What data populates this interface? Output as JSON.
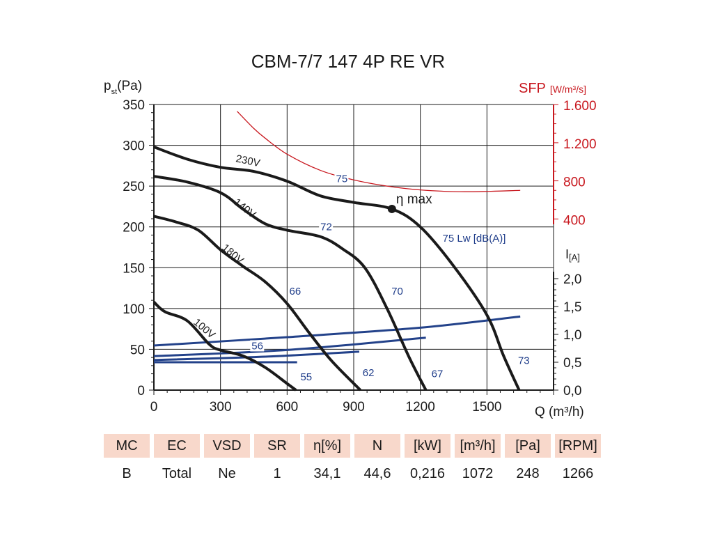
{
  "chart_data": {
    "type": "line",
    "title": "CBM-7/7 147 4P RE VR",
    "xlabel": "Q (m³/h)",
    "ylabel": "p_st(Pa)",
    "ylabel_main": "p",
    "ylabel_sub": "st",
    "ylabel_unit": "(Pa)",
    "xlim": [
      0,
      1800
    ],
    "ylim": [
      0,
      350
    ],
    "x_ticks": [
      "0",
      "300",
      "600",
      "900",
      "1200",
      "1500"
    ],
    "y_ticks": [
      "0",
      "50",
      "100",
      "150",
      "200",
      "250",
      "300",
      "350"
    ],
    "sfp_axis": {
      "label": "SFP",
      "unit": "[W/m³/s]",
      "ticks": [
        "400",
        "800",
        "1.200",
        "1.600"
      ],
      "range": [
        0,
        1600
      ],
      "color": "#c8171e"
    },
    "current_axis": {
      "label": "I",
      "unit": "[A]",
      "ticks": [
        "0,0",
        "0,5",
        "1,0",
        "1,5",
        "2,0"
      ],
      "range": [
        0,
        2.0
      ]
    },
    "grid": true,
    "pressure_series": [
      {
        "name": "230V",
        "points": [
          [
            0,
            298
          ],
          [
            150,
            283
          ],
          [
            300,
            273
          ],
          [
            450,
            268
          ],
          [
            600,
            256
          ],
          [
            750,
            238
          ],
          [
            900,
            230
          ],
          [
            1072,
            222
          ],
          [
            1200,
            200
          ],
          [
            1350,
            152
          ],
          [
            1500,
            92
          ],
          [
            1575,
            42
          ],
          [
            1645,
            0
          ]
        ]
      },
      {
        "name": "140V",
        "points": [
          [
            0,
            262
          ],
          [
            150,
            255
          ],
          [
            300,
            242
          ],
          [
            400,
            222
          ],
          [
            500,
            204
          ],
          [
            600,
            196
          ],
          [
            750,
            188
          ],
          [
            850,
            173
          ],
          [
            950,
            150
          ],
          [
            1050,
            100
          ],
          [
            1150,
            40
          ],
          [
            1225,
            0
          ]
        ]
      },
      {
        "name": "180V",
        "points": [
          [
            0,
            213
          ],
          [
            100,
            206
          ],
          [
            200,
            196
          ],
          [
            300,
            172
          ],
          [
            400,
            152
          ],
          [
            500,
            133
          ],
          [
            600,
            106
          ],
          [
            700,
            70
          ],
          [
            800,
            36
          ],
          [
            930,
            0
          ]
        ]
      },
      {
        "name": "100V",
        "points": [
          [
            0,
            108
          ],
          [
            50,
            96
          ],
          [
            150,
            85
          ],
          [
            250,
            56
          ],
          [
            300,
            49
          ],
          [
            400,
            42
          ],
          [
            500,
            28
          ],
          [
            600,
            8
          ],
          [
            640,
            0
          ]
        ]
      }
    ],
    "sfp_series": {
      "name": "SFP",
      "points": [
        [
          375,
          1530
        ],
        [
          450,
          1350
        ],
        [
          500,
          1250
        ],
        [
          600,
          1080
        ],
        [
          750,
          910
        ],
        [
          900,
          810
        ],
        [
          1050,
          745
        ],
        [
          1200,
          705
        ],
        [
          1400,
          685
        ],
        [
          1650,
          700
        ]
      ]
    },
    "current_series": [
      {
        "name": "I 230V",
        "points": [
          [
            0,
            0.8
          ],
          [
            600,
            0.95
          ],
          [
            1200,
            1.12
          ],
          [
            1650,
            1.32
          ]
        ]
      },
      {
        "name": "I 140V",
        "points": [
          [
            0,
            0.61
          ],
          [
            600,
            0.72
          ],
          [
            1225,
            0.94
          ]
        ]
      },
      {
        "name": "I 180V",
        "points": [
          [
            0,
            0.54
          ],
          [
            500,
            0.6
          ],
          [
            925,
            0.69
          ]
        ]
      },
      {
        "name": "I 100V",
        "points": [
          [
            0,
            0.5
          ],
          [
            645,
            0.5
          ]
        ]
      }
    ],
    "eta_max": {
      "label": "η max",
      "point": [
        1072,
        222
      ]
    },
    "sound_labels": [
      {
        "text": "75",
        "at": [
          820,
          255
        ]
      },
      {
        "text": "72",
        "at": [
          750,
          196
        ]
      },
      {
        "text": "66",
        "at": [
          610,
          117
        ]
      },
      {
        "text": "70",
        "at": [
          1070,
          117
        ]
      },
      {
        "text": "56",
        "at": [
          440,
          50
        ]
      },
      {
        "text": "55",
        "at": [
          660,
          12
        ]
      },
      {
        "text": "62",
        "at": [
          940,
          17
        ]
      },
      {
        "text": "67",
        "at": [
          1250,
          16
        ]
      },
      {
        "text": "73",
        "at": [
          1640,
          32
        ]
      },
      {
        "text": "75 Lw [dB(A)]",
        "at": [
          1300,
          182
        ]
      }
    ]
  },
  "table": {
    "headers": [
      "MC",
      "EC",
      "VSD",
      "SR",
      "η[%]",
      "N",
      "[kW]",
      "[m³/h]",
      "[Pa]",
      "[RPM]"
    ],
    "values": [
      "B",
      "Total",
      "Ne",
      "1",
      "34,1",
      "44,6",
      "0,216",
      "1072",
      "248",
      "1266"
    ]
  }
}
